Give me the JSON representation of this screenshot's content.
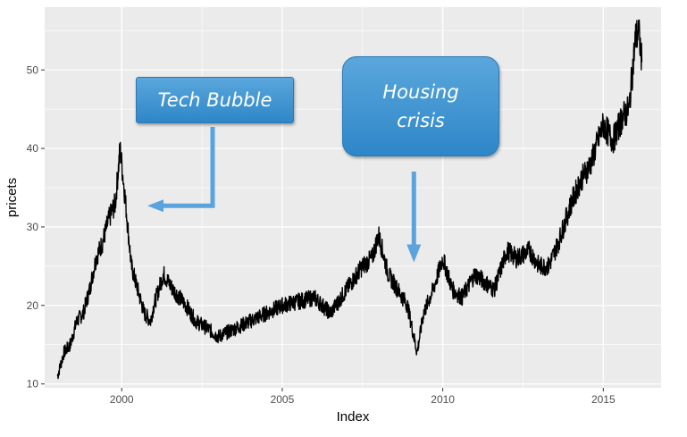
{
  "chart_data": {
    "type": "line",
    "title": "",
    "xlabel": "Index",
    "ylabel": "pricets",
    "xlim": [
      1997.6,
      2016.8
    ],
    "ylim": [
      9.5,
      58
    ],
    "x_ticks": [
      2000,
      2005,
      2010,
      2015
    ],
    "y_ticks": [
      10,
      20,
      30,
      40,
      50
    ],
    "grid": true,
    "series": [
      {
        "points": [
          [
            1998.0,
            11.0
          ],
          [
            1998.2,
            14.0
          ],
          [
            1998.4,
            15.0
          ],
          [
            1998.6,
            18.0
          ],
          [
            1998.8,
            19.0
          ],
          [
            1999.0,
            22.0
          ],
          [
            1999.2,
            26.0
          ],
          [
            1999.4,
            28.0
          ],
          [
            1999.6,
            31.0
          ],
          [
            1999.8,
            33.0
          ],
          [
            1999.95,
            40.0
          ],
          [
            2000.1,
            34.0
          ],
          [
            2000.3,
            25.0
          ],
          [
            2000.5,
            22.0
          ],
          [
            2000.7,
            19.0
          ],
          [
            2000.9,
            18.0
          ],
          [
            2001.0,
            20.0
          ],
          [
            2001.3,
            24.0
          ],
          [
            2001.6,
            22.0
          ],
          [
            2002.0,
            20.0
          ],
          [
            2002.3,
            18.0
          ],
          [
            2002.7,
            17.0
          ],
          [
            2003.0,
            16.0
          ],
          [
            2003.5,
            17.0
          ],
          [
            2004.0,
            18.0
          ],
          [
            2004.5,
            19.0
          ],
          [
            2005.0,
            20.0
          ],
          [
            2005.5,
            20.5
          ],
          [
            2006.0,
            21.0
          ],
          [
            2006.5,
            19.0
          ],
          [
            2007.0,
            22.0
          ],
          [
            2007.5,
            25.0
          ],
          [
            2007.8,
            26.0
          ],
          [
            2008.0,
            29.0
          ],
          [
            2008.3,
            24.0
          ],
          [
            2008.6,
            22.0
          ],
          [
            2008.9,
            20.0
          ],
          [
            2009.2,
            14.0
          ],
          [
            2009.4,
            19.0
          ],
          [
            2009.7,
            22.0
          ],
          [
            2010.0,
            26.0
          ],
          [
            2010.3,
            22.0
          ],
          [
            2010.6,
            21.0
          ],
          [
            2011.0,
            24.0
          ],
          [
            2011.3,
            23.0
          ],
          [
            2011.6,
            22.0
          ],
          [
            2012.0,
            27.0
          ],
          [
            2012.3,
            26.0
          ],
          [
            2012.7,
            27.0
          ],
          [
            2013.0,
            25.0
          ],
          [
            2013.3,
            25.0
          ],
          [
            2013.6,
            28.0
          ],
          [
            2014.0,
            33.0
          ],
          [
            2014.3,
            36.0
          ],
          [
            2014.6,
            38.0
          ],
          [
            2015.0,
            43.0
          ],
          [
            2015.3,
            41.0
          ],
          [
            2015.6,
            44.0
          ],
          [
            2015.8,
            45.0
          ],
          [
            2016.0,
            54.0
          ],
          [
            2016.1,
            55.0
          ],
          [
            2016.2,
            51.0
          ]
        ]
      }
    ],
    "annotations": [
      {
        "text": "Tech Bubble",
        "arrow_target": [
          2000.8,
          32.7
        ]
      },
      {
        "text_lines": [
          "Housing",
          "crisis"
        ],
        "arrow_target": [
          2009.1,
          25.5
        ]
      }
    ],
    "colors": {
      "panel": "#ebebeb",
      "grid": "#ffffff",
      "line": "#000000",
      "callout": "#3a8fd0",
      "arrow": "#5ba3dc"
    }
  }
}
